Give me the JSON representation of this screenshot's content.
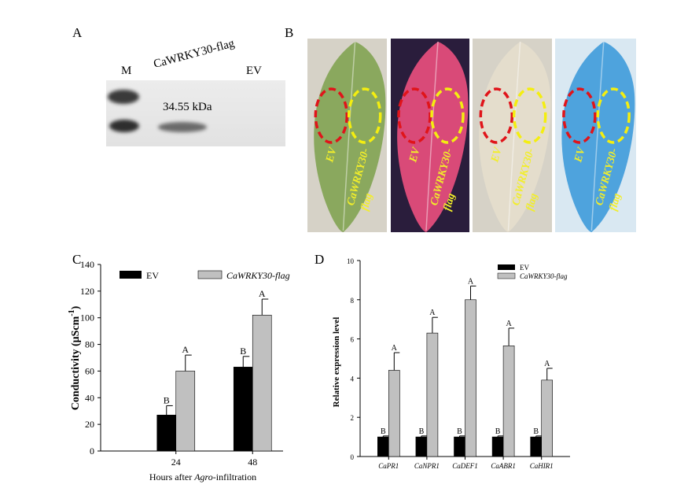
{
  "panels": {
    "a": "A",
    "b": "B",
    "c": "C",
    "d": "D"
  },
  "blot": {
    "m_label": "M",
    "lane_label": "CaWRKY30-flag",
    "ev_label": "EV",
    "kda_label": "34.55 kDa"
  },
  "leaves": [
    {
      "label_ev": "EV",
      "label_flag_1": "CaWRKY30-",
      "label_flag_2": "flag",
      "bg": "#d6d2c7",
      "leaf": "#8aa85e",
      "label_color": "#f2ee2a"
    },
    {
      "label_ev": "EV",
      "label_flag_1": "CaWRKY30-",
      "label_flag_2": "flag",
      "bg": "#2a1d3c",
      "leaf": "#d94a78",
      "label_color": "#f2ee2a"
    },
    {
      "label_ev": "EV",
      "label_flag_1": "CaWRKY30-",
      "label_flag_2": "flag",
      "bg": "#d6d2c7",
      "leaf": "#e4ddcc",
      "label_color": "#f2ee2a"
    },
    {
      "label_ev": "EV",
      "label_flag_1": "CaWRKY30-",
      "label_flag_2": "flag",
      "bg": "#d9e8f2",
      "leaf": "#4ea3dd",
      "label_color": "#f2ee2a"
    }
  ],
  "colors": {
    "ev": "#000000",
    "flag": "#c0c0c0",
    "ev_circle": "#e0141a",
    "flag_circle": "#f4ee10"
  },
  "chart_data": [
    {
      "type": "bar",
      "categories": [
        "24",
        "48"
      ],
      "series": [
        {
          "name": "EV",
          "values": [
            27,
            63
          ],
          "errors": [
            7,
            8
          ],
          "letters": [
            "B",
            "B"
          ]
        },
        {
          "name": "CaWRKY30-flag",
          "values": [
            60,
            102
          ],
          "errors": [
            12,
            12
          ],
          "letters": [
            "A",
            "A"
          ]
        }
      ],
      "xlabel_pre": "Hours after ",
      "xlabel_italic": "Agro",
      "xlabel_post": "-infiltration",
      "ylabel": "Conductivity (μScm",
      "ylabel_sup": "-1",
      "ylabel_post": ")",
      "ylim": [
        0,
        140
      ],
      "yticks": [
        "0",
        "20",
        "40",
        "60",
        "80",
        "100",
        "120",
        "140"
      ],
      "legend_position": "top"
    },
    {
      "type": "bar",
      "categories": [
        "CaPR1",
        "CaNPR1",
        "CaDEF1",
        "CaABR1",
        "CaHIR1"
      ],
      "series": [
        {
          "name": "EV",
          "values": [
            1,
            1,
            1,
            1,
            1
          ],
          "errors": [
            0.05,
            0.05,
            0.05,
            0.05,
            0.05
          ],
          "letters": [
            "B",
            "B",
            "B",
            "B",
            "B"
          ]
        },
        {
          "name": "CaWRKY30-flag",
          "values": [
            4.4,
            6.3,
            8.0,
            5.65,
            3.9
          ],
          "errors": [
            0.9,
            0.8,
            0.7,
            0.9,
            0.6
          ],
          "letters": [
            "A",
            "A",
            "A",
            "A",
            "A"
          ]
        }
      ],
      "xlabel": "",
      "ylabel": "Relative expression level",
      "ylim": [
        0,
        10
      ],
      "yticks": [
        "0",
        "2",
        "4",
        "6",
        "8",
        "10"
      ],
      "legend_position": "top-right"
    }
  ]
}
